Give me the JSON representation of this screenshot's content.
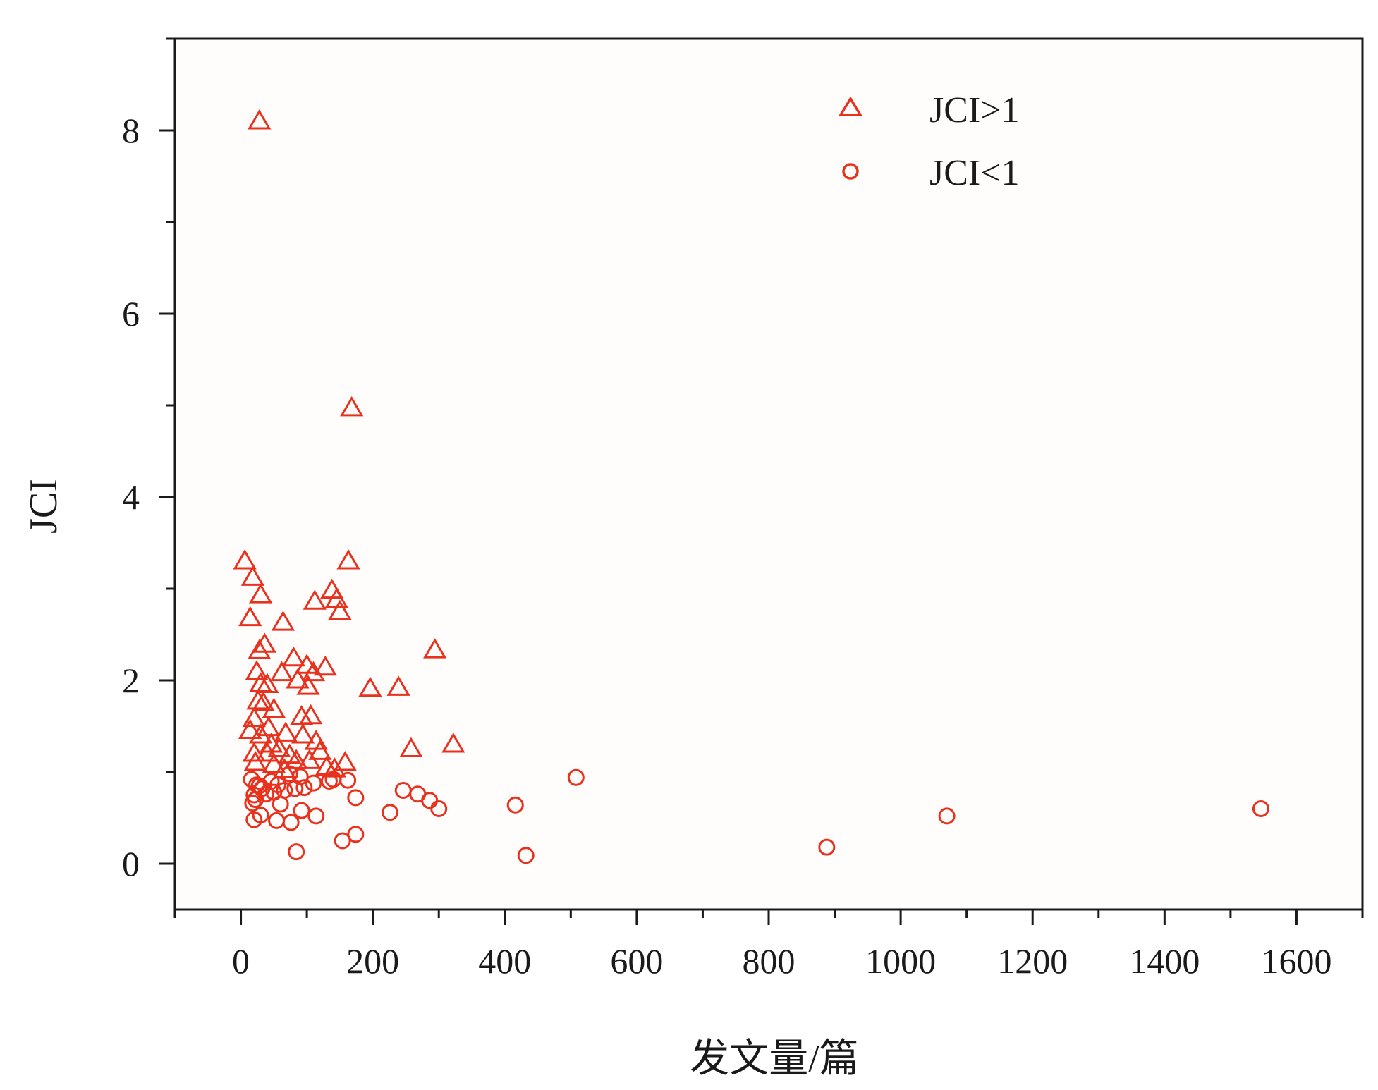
{
  "chart_data": {
    "type": "scatter",
    "title": "",
    "xlabel": "发文量/篇",
    "ylabel": "JCI",
    "xlim": [
      -100,
      1700
    ],
    "ylim": [
      -0.5,
      9.0
    ],
    "x_ticks": [
      0,
      200,
      400,
      600,
      800,
      1000,
      1200,
      1400,
      1600
    ],
    "y_ticks": [
      0,
      2,
      4,
      6,
      8
    ],
    "x_tick_labels": [
      "0",
      "200",
      "400",
      "600",
      "800",
      "1000",
      "1200",
      "1400",
      "1600"
    ],
    "y_tick_labels": [
      "0",
      "2",
      "4",
      "6",
      "8"
    ],
    "grid": false,
    "legend_position": "top-right",
    "marker_color": "#e8321e",
    "series": [
      {
        "name": "JCI>1",
        "marker": "triangle",
        "points": [
          [
            28,
            8.1
          ],
          [
            168,
            4.97
          ],
          [
            6,
            3.3
          ],
          [
            163,
            3.3
          ],
          [
            18,
            3.12
          ],
          [
            30,
            2.93
          ],
          [
            138,
            2.98
          ],
          [
            112,
            2.86
          ],
          [
            145,
            2.88
          ],
          [
            150,
            2.75
          ],
          [
            14,
            2.68
          ],
          [
            64,
            2.63
          ],
          [
            36,
            2.39
          ],
          [
            28,
            2.32
          ],
          [
            294,
            2.33
          ],
          [
            80,
            2.24
          ],
          [
            100,
            2.16
          ],
          [
            128,
            2.14
          ],
          [
            24,
            2.09
          ],
          [
            62,
            2.08
          ],
          [
            110,
            2.08
          ],
          [
            86,
            2.0
          ],
          [
            30,
            1.96
          ],
          [
            40,
            1.95
          ],
          [
            102,
            1.93
          ],
          [
            196,
            1.91
          ],
          [
            239,
            1.92
          ],
          [
            26,
            1.77
          ],
          [
            34,
            1.75
          ],
          [
            50,
            1.68
          ],
          [
            20,
            1.58
          ],
          [
            92,
            1.6
          ],
          [
            106,
            1.61
          ],
          [
            42,
            1.48
          ],
          [
            14,
            1.45
          ],
          [
            30,
            1.4
          ],
          [
            68,
            1.42
          ],
          [
            94,
            1.4
          ],
          [
            114,
            1.33
          ],
          [
            46,
            1.3
          ],
          [
            58,
            1.25
          ],
          [
            120,
            1.22
          ],
          [
            74,
            1.18
          ],
          [
            20,
            1.2
          ],
          [
            40,
            1.2
          ],
          [
            258,
            1.25
          ],
          [
            322,
            1.3
          ],
          [
            158,
            1.1
          ],
          [
            84,
            1.12
          ],
          [
            104,
            1.12
          ],
          [
            22,
            1.1
          ],
          [
            50,
            1.08
          ],
          [
            130,
            1.05
          ],
          [
            66,
            1.02
          ],
          [
            142,
            1.03
          ]
        ]
      },
      {
        "name": "JCI<1",
        "marker": "circle",
        "points": [
          [
            16,
            0.92
          ],
          [
            24,
            0.86
          ],
          [
            32,
            0.82
          ],
          [
            38,
            0.76
          ],
          [
            20,
            0.75
          ],
          [
            22,
            0.7
          ],
          [
            18,
            0.66
          ],
          [
            28,
            0.85
          ],
          [
            46,
            0.9
          ],
          [
            56,
            0.86
          ],
          [
            74,
            0.98
          ],
          [
            90,
            0.95
          ],
          [
            82,
            0.82
          ],
          [
            96,
            0.83
          ],
          [
            110,
            0.88
          ],
          [
            134,
            0.9
          ],
          [
            140,
            0.92
          ],
          [
            162,
            0.91
          ],
          [
            66,
            0.8
          ],
          [
            50,
            0.78
          ],
          [
            174,
            0.72
          ],
          [
            60,
            0.65
          ],
          [
            92,
            0.58
          ],
          [
            114,
            0.52
          ],
          [
            30,
            0.53
          ],
          [
            20,
            0.48
          ],
          [
            54,
            0.47
          ],
          [
            76,
            0.45
          ],
          [
            246,
            0.8
          ],
          [
            268,
            0.76
          ],
          [
            286,
            0.69
          ],
          [
            300,
            0.6
          ],
          [
            226,
            0.56
          ],
          [
            416,
            0.64
          ],
          [
            508,
            0.94
          ],
          [
            174,
            0.32
          ],
          [
            154,
            0.25
          ],
          [
            84,
            0.13
          ],
          [
            432,
            0.09
          ],
          [
            888,
            0.18
          ],
          [
            1070,
            0.52
          ],
          [
            1546,
            0.6
          ]
        ]
      }
    ]
  }
}
